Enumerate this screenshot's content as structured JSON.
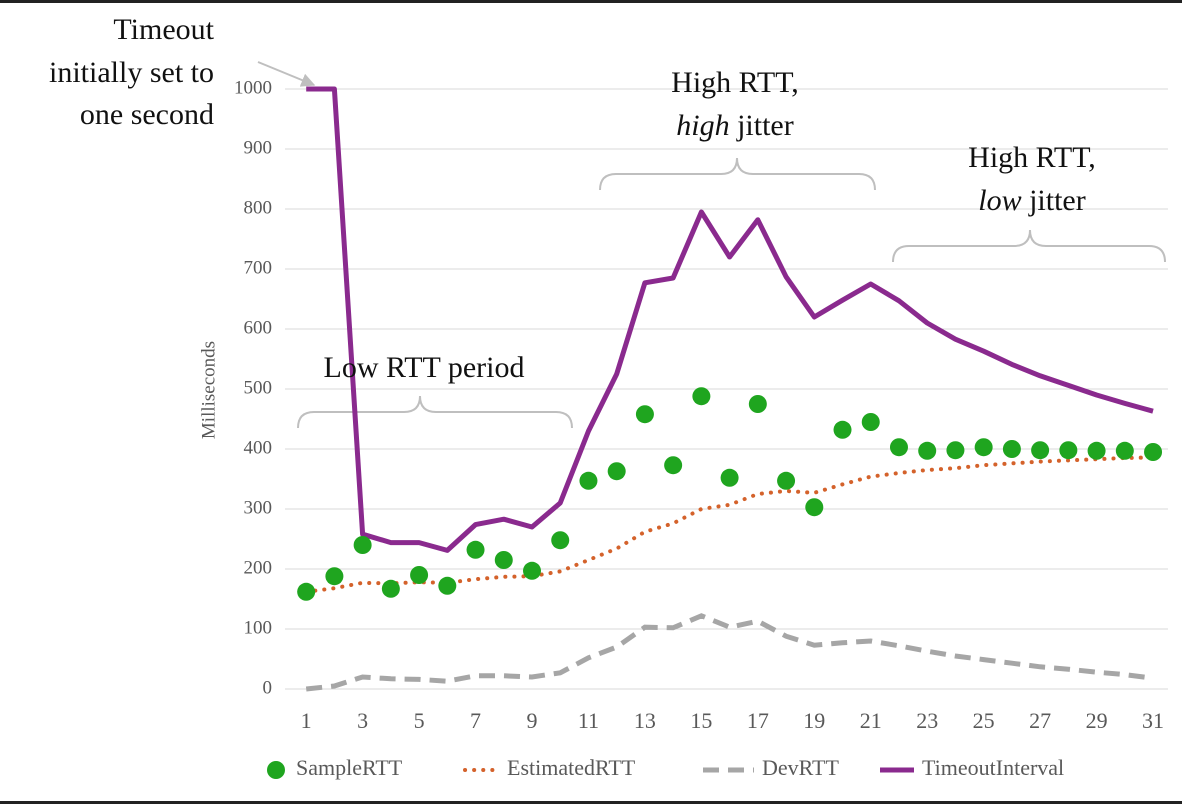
{
  "chart_data": {
    "type": "line",
    "y_label": "Milliseconds",
    "x": [
      1,
      2,
      3,
      4,
      5,
      6,
      7,
      8,
      9,
      10,
      11,
      12,
      13,
      14,
      15,
      16,
      17,
      18,
      19,
      20,
      21,
      22,
      23,
      24,
      25,
      26,
      27,
      28,
      29,
      30,
      31
    ],
    "xlim": [
      0.25,
      31.53
    ],
    "xticks": [
      1,
      3,
      5,
      7,
      9,
      11,
      13,
      15,
      17,
      19,
      21,
      23,
      25,
      27,
      29,
      31
    ],
    "ylim": [
      0,
      1000
    ],
    "yticks": [
      0,
      100,
      200,
      300,
      400,
      500,
      600,
      700,
      800,
      900,
      1000
    ],
    "grid": true,
    "legend": "bottom",
    "series": [
      {
        "name": "SampleRTT",
        "color": "#1fa51f",
        "mode": "markers",
        "values": [
          162,
          188,
          240,
          167,
          190,
          172,
          232,
          215,
          197,
          248,
          347,
          363,
          458,
          373,
          488,
          352,
          475,
          347,
          303,
          432,
          445,
          403,
          397,
          398,
          403,
          400,
          398,
          398,
          397,
          397,
          395
        ]
      },
      {
        "name": "EstimatedRTT",
        "color": "#d4622b",
        "mode": "dotted",
        "values": [
          162,
          168,
          177,
          176,
          178,
          177,
          183,
          187,
          188,
          196,
          215,
          234,
          262,
          276,
          300,
          307,
          325,
          330,
          327,
          341,
          354,
          360,
          365,
          368,
          373,
          376,
          379,
          381,
          383,
          385,
          386
        ]
      },
      {
        "name": "DevRTT",
        "color": "#a6a6a6",
        "mode": "dashed",
        "values": [
          0,
          5,
          20,
          17,
          16,
          13,
          22,
          22,
          20,
          27,
          52,
          70,
          103,
          102,
          122,
          103,
          113,
          88,
          73,
          77,
          80,
          72,
          63,
          55,
          49,
          43,
          37,
          33,
          28,
          24,
          18
        ]
      },
      {
        "name": "TimeoutInterval",
        "color": "#8a2a8e",
        "mode": "solid",
        "values": [
          1000,
          1000,
          258,
          244,
          244,
          231,
          274,
          283,
          270,
          310,
          430,
          525,
          677,
          685,
          795,
          720,
          782,
          687,
          620,
          648,
          675,
          647,
          610,
          583,
          563,
          541,
          522,
          506,
          490,
          476,
          463
        ]
      }
    ],
    "annotations": [
      {
        "lines": [
          [
            {
              "text": "Timeout"
            }
          ],
          [
            {
              "text": "initially set to"
            }
          ],
          [
            {
              "text": "one second"
            }
          ]
        ]
      },
      {
        "lines": [
          [
            {
              "text": "Low RTT period"
            }
          ]
        ]
      },
      {
        "lines": [
          [
            {
              "text": "High RTT,"
            }
          ],
          [
            {
              "text": "high",
              "italic": true
            },
            {
              "text": " jitter"
            }
          ]
        ]
      },
      {
        "lines": [
          [
            {
              "text": "High RTT,"
            }
          ],
          [
            {
              "text": "low",
              "italic": true
            },
            {
              "text": " jitter"
            }
          ]
        ]
      }
    ]
  }
}
